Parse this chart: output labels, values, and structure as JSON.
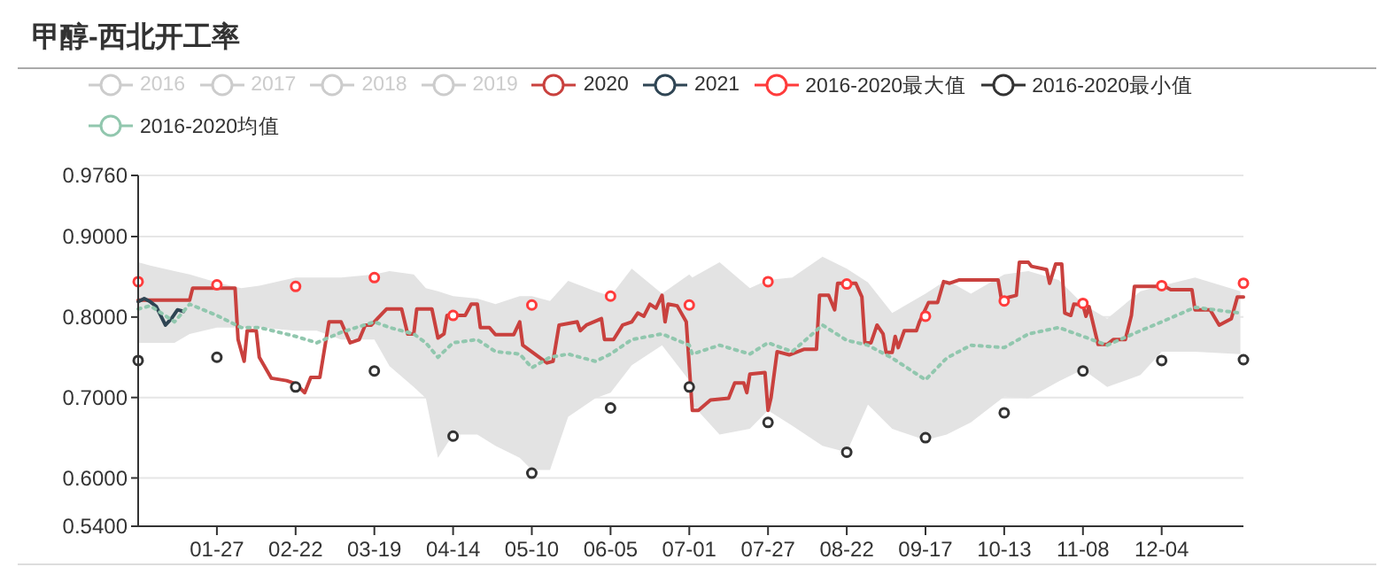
{
  "chart_data": {
    "type": "line",
    "title": "甲醇-西北开工率",
    "legend": "top",
    "grid": "y",
    "xlim": [
      "--01-01",
      "--12-31"
    ],
    "xticks": [
      {
        "value": "--01-27",
        "label": "01-27"
      },
      {
        "value": "--02-22",
        "label": "02-22"
      },
      {
        "value": "--03-19",
        "label": "03-19"
      },
      {
        "value": "--04-14",
        "label": "04-14"
      },
      {
        "value": "--05-10",
        "label": "05-10"
      },
      {
        "value": "--06-05",
        "label": "06-05"
      },
      {
        "value": "--07-01",
        "label": "07-01"
      },
      {
        "value": "--07-27",
        "label": "07-27"
      },
      {
        "value": "--08-22",
        "label": "08-22"
      },
      {
        "value": "--09-17",
        "label": "09-17"
      },
      {
        "value": "--10-13",
        "label": "10-13"
      },
      {
        "value": "--11-08",
        "label": "11-08"
      },
      {
        "value": "--12-04",
        "label": "12-04"
      }
    ],
    "ylim": [
      0.54,
      0.976
    ],
    "yticks": [
      {
        "value": 0.54,
        "label": "0.5400"
      },
      {
        "value": 0.6,
        "label": "0.6000"
      },
      {
        "value": 0.7,
        "label": "0.7000"
      },
      {
        "value": 0.8,
        "label": "0.8000"
      },
      {
        "value": 0.9,
        "label": "0.9000"
      },
      {
        "value": 0.976,
        "label": "0.9760"
      }
    ],
    "series": [
      {
        "name": "2016"
      },
      {
        "name": "2017"
      },
      {
        "name": "2018"
      },
      {
        "name": "2019"
      },
      {
        "name": "2020",
        "color": "#c9413e",
        "marker": "none",
        "line_style": "solid",
        "x": [
          "--01-01",
          "--01-18",
          "--01-19",
          "--02-02",
          "--02-03",
          "--02-05",
          "--02-06",
          "--02-09",
          "--02-10",
          "--02-14",
          "--02-19",
          "--02-22",
          "--02-25",
          "--02-27",
          "--03-01",
          "--03-04",
          "--03-08",
          "--03-11",
          "--03-14",
          "--03-16",
          "--03-18",
          "--03-20",
          "--03-23",
          "--03-28",
          "--03-30",
          "--04-01",
          "--04-02",
          "--04-07",
          "--04-09",
          "--04-11",
          "--04-12",
          "--04-18",
          "--04-20",
          "--04-22",
          "--04-23",
          "--04-26",
          "--04-28",
          "--05-04",
          "--05-06",
          "--05-07",
          "--05-11",
          "--05-15",
          "--05-17",
          "--05-19",
          "--05-25",
          "--05-26",
          "--05-28",
          "--06-02",
          "--06-03",
          "--06-06",
          "--06-09",
          "--06-12",
          "--06-14",
          "--06-16",
          "--06-18",
          "--06-20",
          "--06-22",
          "--06-23",
          "--06-24",
          "--06-27",
          "--06-30",
          "--07-02",
          "--07-04",
          "--07-08",
          "--07-14",
          "--07-16",
          "--07-19",
          "--07-20",
          "--07-21",
          "--07-26",
          "--07-27",
          "--07-28",
          "--07-30",
          "--08-03",
          "--08-08",
          "--08-12",
          "--08-13",
          "--08-16",
          "--08-18",
          "--08-19",
          "--08-25",
          "--08-27",
          "--08-28",
          "--08-30",
          "--09-01",
          "--09-03",
          "--09-04",
          "--09-06",
          "--09-07",
          "--09-08",
          "--09-10",
          "--09-14",
          "--09-15",
          "--09-18",
          "--09-21",
          "--09-23",
          "--09-25",
          "--09-28",
          "--10-11",
          "--10-12",
          "--10-14",
          "--10-17",
          "--10-18",
          "--10-21",
          "--10-22",
          "--10-27",
          "--10-28",
          "--10-30",
          "--11-01",
          "--11-02",
          "--11-04",
          "--11-05",
          "--11-08",
          "--11-09",
          "--11-10",
          "--11-13",
          "--11-16",
          "--11-18",
          "--11-22",
          "--11-24",
          "--11-25",
          "--12-05",
          "--12-07",
          "--12-10",
          "--12-14",
          "--12-15",
          "--12-20",
          "--12-23",
          "--12-27",
          "--12-29",
          "--12-31"
        ],
        "values": [
          0.821,
          0.821,
          0.836,
          0.836,
          0.772,
          0.745,
          0.783,
          0.783,
          0.75,
          0.724,
          0.721,
          0.717,
          0.706,
          0.725,
          0.725,
          0.794,
          0.794,
          0.768,
          0.772,
          0.79,
          0.79,
          0.798,
          0.81,
          0.81,
          0.779,
          0.779,
          0.81,
          0.81,
          0.774,
          0.779,
          0.802,
          0.802,
          0.816,
          0.816,
          0.787,
          0.787,
          0.778,
          0.778,
          0.794,
          0.765,
          0.754,
          0.743,
          0.745,
          0.79,
          0.794,
          0.783,
          0.79,
          0.798,
          0.772,
          0.772,
          0.79,
          0.794,
          0.805,
          0.801,
          0.816,
          0.811,
          0.827,
          0.794,
          0.816,
          0.814,
          0.794,
          0.684,
          0.684,
          0.697,
          0.699,
          0.718,
          0.718,
          0.706,
          0.729,
          0.731,
          0.684,
          0.7,
          0.757,
          0.753,
          0.76,
          0.76,
          0.827,
          0.827,
          0.809,
          0.842,
          0.842,
          0.825,
          0.768,
          0.768,
          0.79,
          0.779,
          0.756,
          0.756,
          0.776,
          0.762,
          0.783,
          0.783,
          0.794,
          0.818,
          0.818,
          0.844,
          0.842,
          0.846,
          0.846,
          0.824,
          0.824,
          0.827,
          0.868,
          0.868,
          0.863,
          0.859,
          0.842,
          0.866,
          0.866,
          0.805,
          0.802,
          0.816,
          0.815,
          0.801,
          0.813,
          0.766,
          0.766,
          0.772,
          0.772,
          0.802,
          0.838,
          0.838,
          0.834,
          0.834,
          0.834,
          0.809,
          0.809,
          0.79,
          0.798,
          0.825,
          0.825
        ]
      },
      {
        "name": "2021",
        "color": "#2f4554",
        "marker": "none",
        "line_style": "solid",
        "x": [
          "--01-01",
          "--01-03",
          "--01-05",
          "--01-07",
          "--01-10",
          "--01-12",
          "--01-14",
          "--01-16"
        ],
        "values": [
          0.819,
          0.823,
          0.819,
          0.813,
          0.79,
          0.798,
          0.809,
          0.807
        ]
      },
      {
        "name": "2016-2020最大值",
        "color": "#ff3b3b",
        "type": "scatter",
        "marker": "circle",
        "x": [
          "--01-01",
          "--01-27",
          "--02-22",
          "--03-19",
          "--04-14",
          "--05-10",
          "--06-05",
          "--07-01",
          "--07-27",
          "--08-22",
          "--09-17",
          "--10-13",
          "--11-08",
          "--12-04",
          "--12-31"
        ],
        "values": [
          0.844,
          0.84,
          0.838,
          0.849,
          0.802,
          0.815,
          0.826,
          0.815,
          0.844,
          0.841,
          0.801,
          0.82,
          0.817,
          0.839,
          0.842
        ]
      },
      {
        "name": "2016-2020最小值",
        "color": "#333333",
        "type": "scatter",
        "marker": "circle",
        "x": [
          "--01-01",
          "--01-27",
          "--02-22",
          "--03-19",
          "--04-14",
          "--05-10",
          "--06-05",
          "--07-01",
          "--07-27",
          "--08-22",
          "--09-17",
          "--10-13",
          "--11-08",
          "--12-04",
          "--12-31"
        ],
        "values": [
          0.746,
          0.75,
          0.713,
          0.733,
          0.652,
          0.606,
          0.687,
          0.713,
          0.669,
          0.632,
          0.65,
          0.681,
          0.733,
          0.746,
          0.747
        ]
      },
      {
        "name": "2016-2020均值",
        "color": "#91c7ae",
        "marker": "none",
        "line_style": "dotted",
        "x": [
          "--01-01",
          "--01-05",
          "--01-13",
          "--01-18",
          "--01-27",
          "--02-04",
          "--02-10",
          "--02-22",
          "--02-29",
          "--03-08",
          "--03-19",
          "--03-24",
          "--04-01",
          "--04-05",
          "--04-09",
          "--04-14",
          "--04-22",
          "--04-28",
          "--05-06",
          "--05-10",
          "--05-16",
          "--05-22",
          "--05-31",
          "--06-05",
          "--06-12",
          "--06-22",
          "--07-01",
          "--07-02",
          "--07-11",
          "--07-21",
          "--07-27",
          "--08-04",
          "--08-14",
          "--08-22",
          "--08-29",
          "--09-06",
          "--09-17",
          "--09-24",
          "--10-02",
          "--10-13",
          "--10-21",
          "--10-31",
          "--11-08",
          "--11-16",
          "--11-27",
          "--12-04",
          "--12-15",
          "--12-30"
        ],
        "values": [
          0.81,
          0.814,
          0.794,
          0.816,
          0.802,
          0.787,
          0.787,
          0.776,
          0.768,
          0.781,
          0.794,
          0.787,
          0.779,
          0.768,
          0.75,
          0.768,
          0.772,
          0.757,
          0.754,
          0.737,
          0.75,
          0.754,
          0.745,
          0.754,
          0.772,
          0.779,
          0.765,
          0.754,
          0.765,
          0.754,
          0.768,
          0.757,
          0.79,
          0.771,
          0.765,
          0.749,
          0.722,
          0.749,
          0.765,
          0.762,
          0.779,
          0.787,
          0.776,
          0.765,
          0.783,
          0.794,
          0.812,
          0.805
        ],
        "lower": [
          0.768,
          0.768,
          0.768,
          0.779,
          0.787,
          0.787,
          0.787,
          0.783,
          0.783,
          0.772,
          0.772,
          0.739,
          0.713,
          0.699,
          0.625,
          0.654,
          0.654,
          0.64,
          0.625,
          0.61,
          0.61,
          0.676,
          0.699,
          0.706,
          0.74,
          0.765,
          0.721,
          0.691,
          0.654,
          0.661,
          0.684,
          0.665,
          0.64,
          0.632,
          0.691,
          0.661,
          0.647,
          0.654,
          0.669,
          0.701,
          0.699,
          0.72,
          0.735,
          0.713,
          0.728,
          0.757,
          0.757,
          0.754
        ],
        "upper": [
          0.868,
          0.864,
          0.857,
          0.853,
          0.843,
          0.836,
          0.839,
          0.849,
          0.849,
          0.849,
          0.853,
          0.857,
          0.853,
          0.836,
          0.832,
          0.826,
          0.823,
          0.816,
          0.826,
          0.826,
          0.82,
          0.845,
          0.832,
          0.826,
          0.86,
          0.829,
          0.853,
          0.849,
          0.868,
          0.836,
          0.846,
          0.849,
          0.875,
          0.86,
          0.843,
          0.805,
          0.829,
          0.846,
          0.829,
          0.853,
          0.857,
          0.846,
          0.816,
          0.798,
          0.832,
          0.839,
          0.849,
          0.832
        ]
      }
    ]
  }
}
